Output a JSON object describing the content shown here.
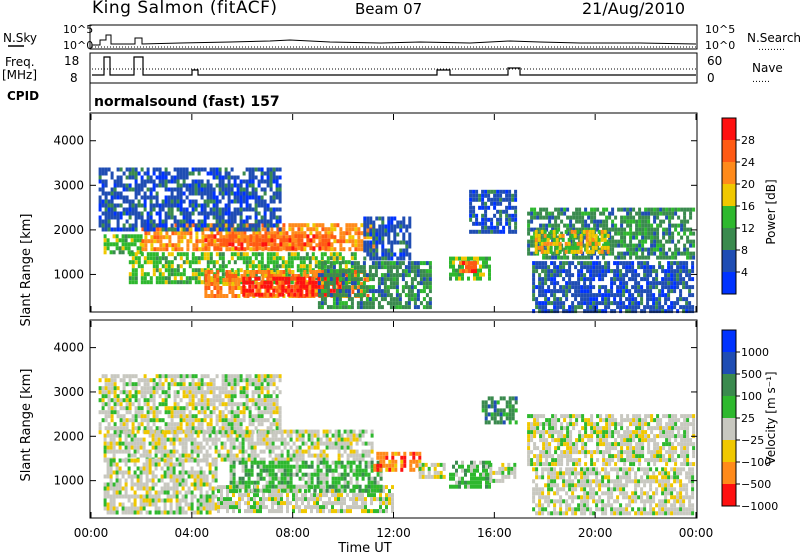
{
  "header": {
    "station": "King Salmon (fitACF)",
    "beam": "Beam 07",
    "date": "21/Aug/2010"
  },
  "panels": {
    "nsky": {
      "left_label": "N.Sky",
      "right_label": "N.Search",
      "left_ticks": [
        "10^5",
        "10^0"
      ],
      "right_ticks": [
        "10^5",
        "10^0"
      ],
      "right_marker": "………"
    },
    "freq": {
      "left_label_1": "Freq.",
      "left_label_2": "[MHz]",
      "right_label": "Nave",
      "left_ticks": [
        "18",
        "8"
      ],
      "right_ticks": [
        "60",
        "0"
      ],
      "right_marker": "……"
    },
    "cpid": {
      "label": "CPID",
      "text": "normalsound (fast) 157"
    }
  },
  "colors": {
    "power": [
      "#0033ff",
      "#1f4db3",
      "#3a8a4e",
      "#2eb82e",
      "#f0c800",
      "#ff8a1a",
      "#ff5a14",
      "#ff1010"
    ],
    "velocity": [
      "#0033ff",
      "#1f4db3",
      "#3a8a4e",
      "#2eb82e",
      "#c8c8c0",
      "#f0c800",
      "#ff8a1a",
      "#ff1010"
    ]
  },
  "chart_data": [
    {
      "type": "heatmap",
      "title": "Power",
      "xlabel": "Time UT",
      "ylabel": "Slant Range [km]",
      "colorbar_label": "Power [dB]",
      "colorbar_ticks": [
        "28",
        "24",
        "20",
        "16",
        "12",
        "8",
        "4"
      ],
      "x_ticks": [
        "00:00",
        "04:00",
        "08:00",
        "12:00",
        "16:00",
        "20:00",
        "00:00"
      ],
      "y_ticks": [
        "4000",
        "3000",
        "2000",
        "1000"
      ],
      "xlim": [
        0,
        24
      ],
      "ylim": [
        180,
        4600
      ],
      "regions": [
        {
          "t0": 0.5,
          "t1": 2.0,
          "r0": 1500,
          "r1": 1900,
          "level": 3
        },
        {
          "t0": 2.0,
          "t1": 11.2,
          "r0": 1550,
          "r1": 2150,
          "level": 5
        },
        {
          "t0": 4.5,
          "t1": 9.5,
          "r0": 1600,
          "r1": 1900,
          "level": 6
        },
        {
          "t0": 1.5,
          "t1": 10.5,
          "r0": 800,
          "r1": 1500,
          "level": 3
        },
        {
          "t0": 4.5,
          "t1": 11.0,
          "r0": 500,
          "r1": 1100,
          "level": 5
        },
        {
          "t0": 6.0,
          "t1": 10.0,
          "r0": 550,
          "r1": 950,
          "level": 7
        },
        {
          "t0": 9.0,
          "t1": 13.5,
          "r0": 300,
          "r1": 1300,
          "level": 2
        },
        {
          "t0": 14.2,
          "t1": 15.8,
          "r0": 900,
          "r1": 1400,
          "level": 3
        },
        {
          "t0": 14.6,
          "t1": 15.3,
          "r0": 1050,
          "r1": 1300,
          "level": 6
        },
        {
          "t0": 15.0,
          "t1": 16.9,
          "r0": 2000,
          "r1": 2900,
          "level": 1
        },
        {
          "t0": 17.3,
          "t1": 23.9,
          "r0": 1400,
          "r1": 2500,
          "level": 2
        },
        {
          "t0": 17.6,
          "t1": 20.5,
          "r0": 1500,
          "r1": 2000,
          "level": 4
        },
        {
          "t0": 17.5,
          "t1": 23.9,
          "r0": 200,
          "r1": 1300,
          "level": 1
        },
        {
          "t0": 0.3,
          "t1": 7.5,
          "r0": 2000,
          "r1": 3400,
          "level": 1
        },
        {
          "t0": 10.8,
          "t1": 12.6,
          "r0": 1400,
          "r1": 2300,
          "level": 1
        }
      ]
    },
    {
      "type": "heatmap",
      "title": "Velocity",
      "xlabel": "Time UT",
      "ylabel": "Slant Range [km]",
      "colorbar_label": "Velocity [m s⁻¹]",
      "colorbar_ticks": [
        "1000",
        "500",
        "100",
        "25",
        "−25",
        "−100",
        "−500",
        "−1000"
      ],
      "x_ticks": [
        "00:00",
        "04:00",
        "08:00",
        "12:00",
        "16:00",
        "20:00",
        "00:00"
      ],
      "y_ticks": [
        "4000",
        "3000",
        "2000",
        "1000"
      ],
      "xlim": [
        0,
        24
      ],
      "ylim": [
        180,
        4600
      ],
      "regions": [
        {
          "t0": 0.5,
          "t1": 11.2,
          "r0": 1500,
          "r1": 2150,
          "level": 4
        },
        {
          "t0": 0.5,
          "t1": 5.0,
          "r0": 300,
          "r1": 1500,
          "level": 4
        },
        {
          "t0": 5.0,
          "t1": 12.0,
          "r0": 300,
          "r1": 900,
          "level": 4
        },
        {
          "t0": 5.5,
          "t1": 11.5,
          "r0": 800,
          "r1": 1450,
          "level": 3
        },
        {
          "t0": 11.2,
          "t1": 13.0,
          "r0": 1250,
          "r1": 1650,
          "level": 6
        },
        {
          "t0": 13.0,
          "t1": 14.0,
          "r0": 1100,
          "r1": 1400,
          "level": 4
        },
        {
          "t0": 14.2,
          "t1": 15.8,
          "r0": 900,
          "r1": 1450,
          "level": 3
        },
        {
          "t0": 15.8,
          "t1": 16.8,
          "r0": 1000,
          "r1": 1400,
          "level": 4
        },
        {
          "t0": 15.5,
          "t1": 16.9,
          "r0": 2300,
          "r1": 2900,
          "level": 2
        },
        {
          "t0": 17.3,
          "t1": 23.9,
          "r0": 1400,
          "r1": 2500,
          "level": 4
        },
        {
          "t0": 17.5,
          "t1": 23.9,
          "r0": 300,
          "r1": 1300,
          "level": 4
        },
        {
          "t0": 0.3,
          "t1": 7.5,
          "r0": 2100,
          "r1": 3400,
          "level": 4
        }
      ]
    }
  ]
}
